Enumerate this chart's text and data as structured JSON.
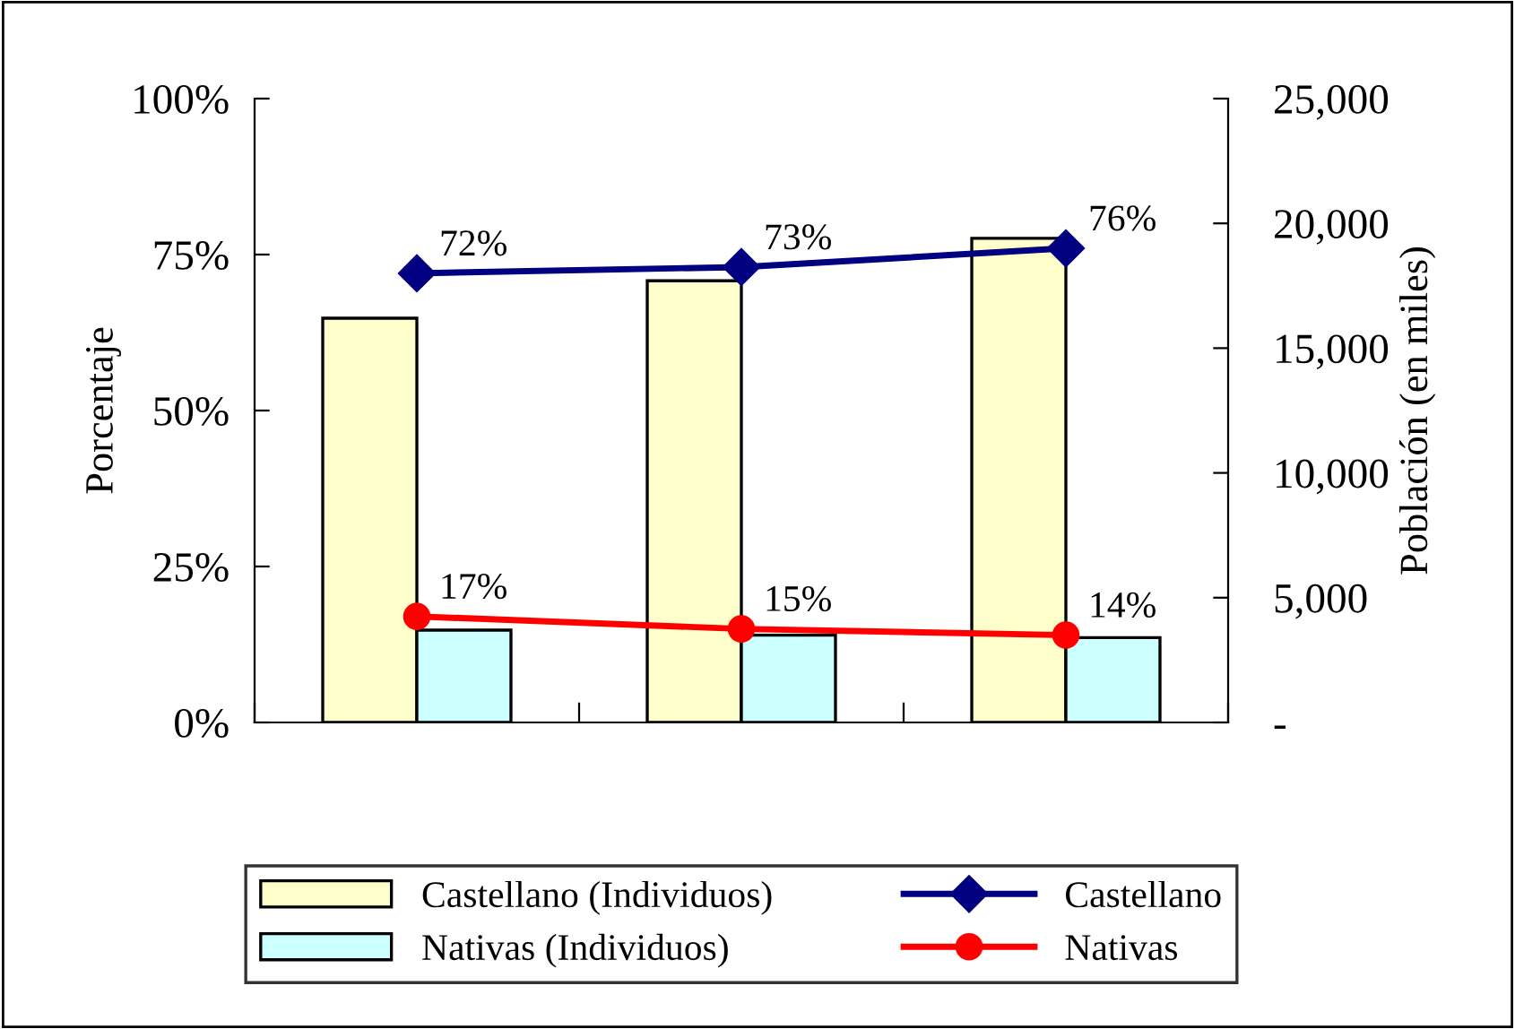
{
  "chart_data": {
    "type": "bar",
    "ylabel": "Porcentaje",
    "y2label": "Población (en miles)",
    "categories": [
      null,
      null,
      null
    ],
    "series": [
      {
        "name": "Castellano (Individuos)",
        "axis": "y2",
        "color": "#ffffcc",
        "values": [
          16200,
          17700,
          19400
        ]
      },
      {
        "name": "Nativas (Individuos)",
        "axis": "y2",
        "color": "#ccffff",
        "values": [
          3700,
          3500,
          3400
        ]
      },
      {
        "name": "Castellano",
        "type": "line",
        "axis": "y",
        "color": "#000080",
        "marker": "diamond",
        "values": [
          72,
          73,
          76
        ],
        "value_labels": [
          "72%",
          "73%",
          "76%"
        ]
      },
      {
        "name": "Nativas",
        "type": "line",
        "axis": "y",
        "color": "#ff0000",
        "marker": "circle",
        "values": [
          17,
          15,
          14
        ],
        "value_labels": [
          "17%",
          "15%",
          "14%"
        ]
      }
    ],
    "ylim": [
      0,
      100
    ],
    "yticks": [
      {
        "value": 0,
        "label": "0%"
      },
      {
        "value": 25,
        "label": "25%"
      },
      {
        "value": 50,
        "label": "50%"
      },
      {
        "value": 75,
        "label": "75%"
      },
      {
        "value": 100,
        "label": "100%"
      }
    ],
    "y2lim": [
      0,
      25000
    ],
    "y2ticks": [
      {
        "value": 0,
        "label": "-"
      },
      {
        "value": 5000,
        "label": "5,000"
      },
      {
        "value": 10000,
        "label": "10,000"
      },
      {
        "value": 15000,
        "label": "15,000"
      },
      {
        "value": 20000,
        "label": "20,000"
      },
      {
        "value": 25000,
        "label": "25,000"
      }
    ],
    "grid": false,
    "legend": "bottom"
  }
}
